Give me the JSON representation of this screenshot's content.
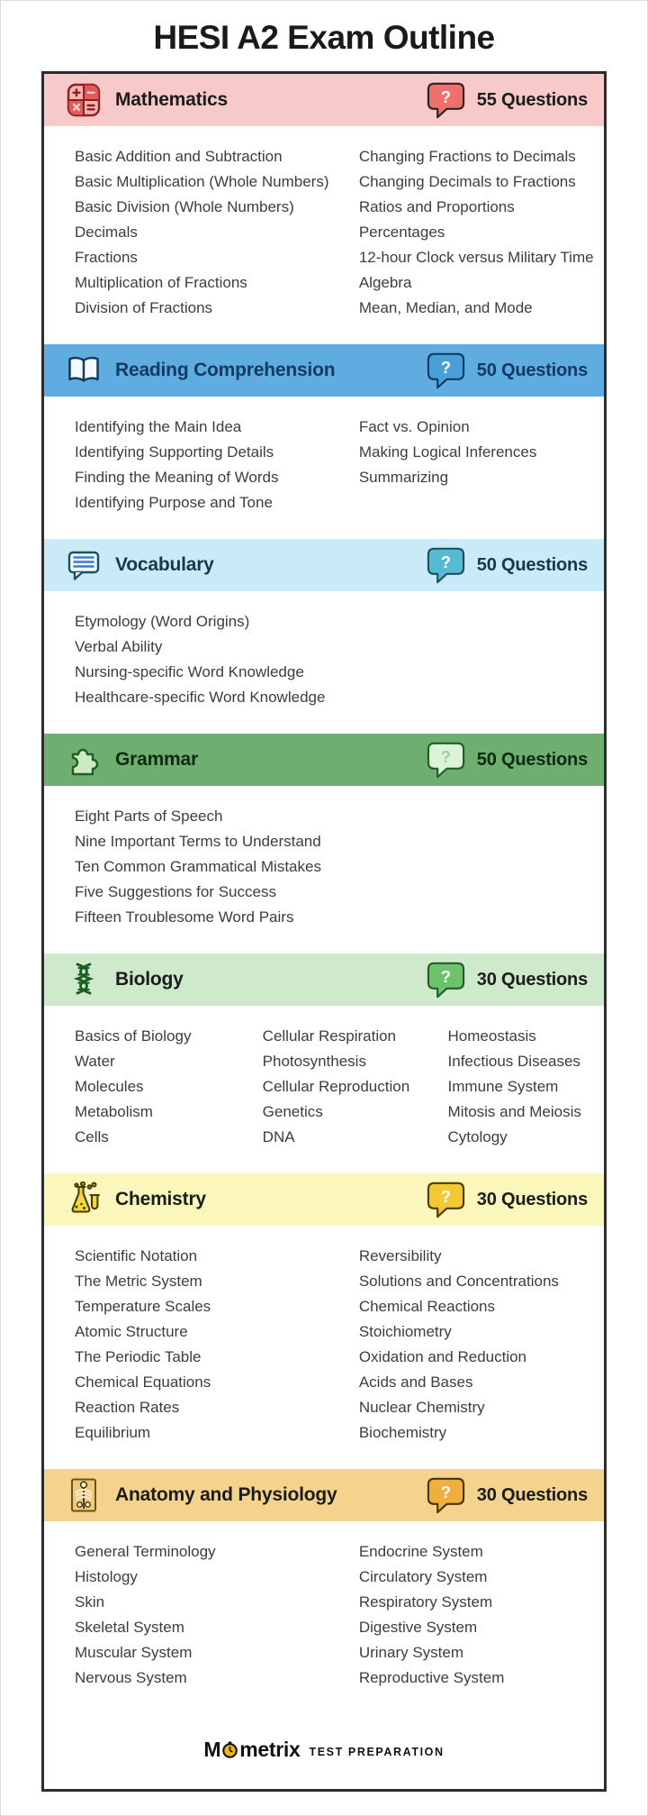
{
  "page": {
    "title": "HESI A2 Exam Outline",
    "footer": {
      "brand_m": "M",
      "brand_rest": "metrix",
      "tagline": "TEST PREPARATION",
      "accent": "#f0b51a"
    },
    "colors": {
      "topic_text": "#3d3d3d",
      "card_border": "#2d2d2d"
    }
  },
  "sections": [
    {
      "id": "mathematics",
      "title": "Mathematics",
      "questions": "55 Questions",
      "icon": "calculator-icon",
      "colors": {
        "header_bg": "#f8c9c9",
        "title": "#1c1c1c",
        "badge_bg": "#ee6f6b",
        "badge_mark": "#ffffff",
        "badge_border": "#2b2222"
      },
      "columns": [
        [
          "Basic Addition and Subtraction",
          "Basic Multiplication (Whole Numbers)",
          "Basic Division (Whole Numbers)",
          "Decimals",
          "Fractions",
          "Multiplication of Fractions",
          "Division of Fractions"
        ],
        [
          "Changing Fractions to Decimals",
          "Changing Decimals to Fractions",
          "Ratios and Proportions",
          "Percentages",
          "12-hour Clock versus Military Time",
          "Algebra",
          "Mean, Median, and Mode"
        ]
      ]
    },
    {
      "id": "reading-comprehension",
      "title": "Reading Comprehension",
      "questions": "50 Questions",
      "icon": "open-book-icon",
      "colors": {
        "header_bg": "#5fade0",
        "title": "#123a63",
        "badge_bg": "#4aa0d6",
        "badge_mark": "#ffffff",
        "badge_border": "#123a63"
      },
      "columns": [
        [
          "Identifying the Main Idea",
          "Identifying Supporting Details",
          "Finding the Meaning of Words",
          "Identifying Purpose and Tone"
        ],
        [
          "Fact vs. Opinion",
          "Making Logical Inferences",
          "Summarizing"
        ]
      ]
    },
    {
      "id": "vocabulary",
      "title": "Vocabulary",
      "questions": "50 Questions",
      "icon": "speech-bubble-lines-icon",
      "colors": {
        "header_bg": "#c8ebf7",
        "title": "#16384d",
        "badge_bg": "#55bad2",
        "badge_mark": "#ffffff",
        "badge_border": "#1d515e"
      },
      "columns": [
        [
          "Etymology (Word Origins)",
          "Verbal Ability",
          "Nursing-specific Word Knowledge",
          "Healthcare-specific Word Knowledge"
        ]
      ]
    },
    {
      "id": "grammar",
      "title": "Grammar",
      "questions": "50 Questions",
      "icon": "puzzle-piece-icon",
      "colors": {
        "header_bg": "#6fae71",
        "title": "#0f2a10",
        "badge_bg": "#ddf2d6",
        "badge_mark": "#9fcf9f",
        "badge_border": "#215e24"
      },
      "columns": [
        [
          "Eight Parts of Speech",
          "Nine Important Terms to Understand",
          "Ten Common Grammatical Mistakes",
          "Five Suggestions for Success",
          "Fifteen Troublesome Word Pairs"
        ]
      ]
    },
    {
      "id": "biology",
      "title": "Biology",
      "questions": "30 Questions",
      "icon": "dna-icon",
      "colors": {
        "header_bg": "#cee9cc",
        "title": "#1c1c1c",
        "badge_bg": "#6cc36c",
        "badge_mark": "#ffffff",
        "badge_border": "#215e24"
      },
      "columns": [
        [
          "Basics of Biology",
          "Water",
          "Molecules",
          "Metabolism",
          "Cells"
        ],
        [
          "Cellular Respiration",
          "Photosynthesis",
          "Cellular Reproduction",
          "Genetics",
          "DNA"
        ],
        [
          "Homeostasis",
          "Infectious Diseases",
          "Immune System",
          "Mitosis and Meiosis",
          "Cytology"
        ]
      ]
    },
    {
      "id": "chemistry",
      "title": "Chemistry",
      "questions": "30 Questions",
      "icon": "chemistry-flask-icon",
      "colors": {
        "header_bg": "#faf6bc",
        "title": "#1c1c1c",
        "badge_bg": "#f2c836",
        "badge_mark": "#ffffff",
        "badge_border": "#4a3c05"
      },
      "columns": [
        [
          "Scientific Notation",
          "The Metric System",
          "Temperature Scales",
          "Atomic Structure",
          "The Periodic Table",
          "Chemical Equations",
          "Reaction Rates",
          "Equilibrium"
        ],
        [
          "Reversibility",
          "Solutions and Concentrations",
          "Chemical Reactions",
          "Stoichiometry",
          "Oxidation and Reduction",
          "Acids and Bases",
          "Nuclear Chemistry",
          "Biochemistry"
        ]
      ]
    },
    {
      "id": "anatomy-and-physiology",
      "title": "Anatomy and Physiology",
      "questions": "30 Questions",
      "icon": "skeleton-icon",
      "colors": {
        "header_bg": "#f4d38e",
        "title": "#1c1c1c",
        "badge_bg": "#f0ae3c",
        "badge_mark": "#ffffff",
        "badge_border": "#4a3405"
      },
      "columns": [
        [
          "General Terminology",
          "Histology",
          "Skin",
          "Skeletal System",
          "Muscular System",
          "Nervous System"
        ],
        [
          "Endocrine System",
          "Circulatory System",
          "Respiratory System",
          "Digestive System",
          "Urinary System",
          "Reproductive System"
        ]
      ]
    }
  ]
}
